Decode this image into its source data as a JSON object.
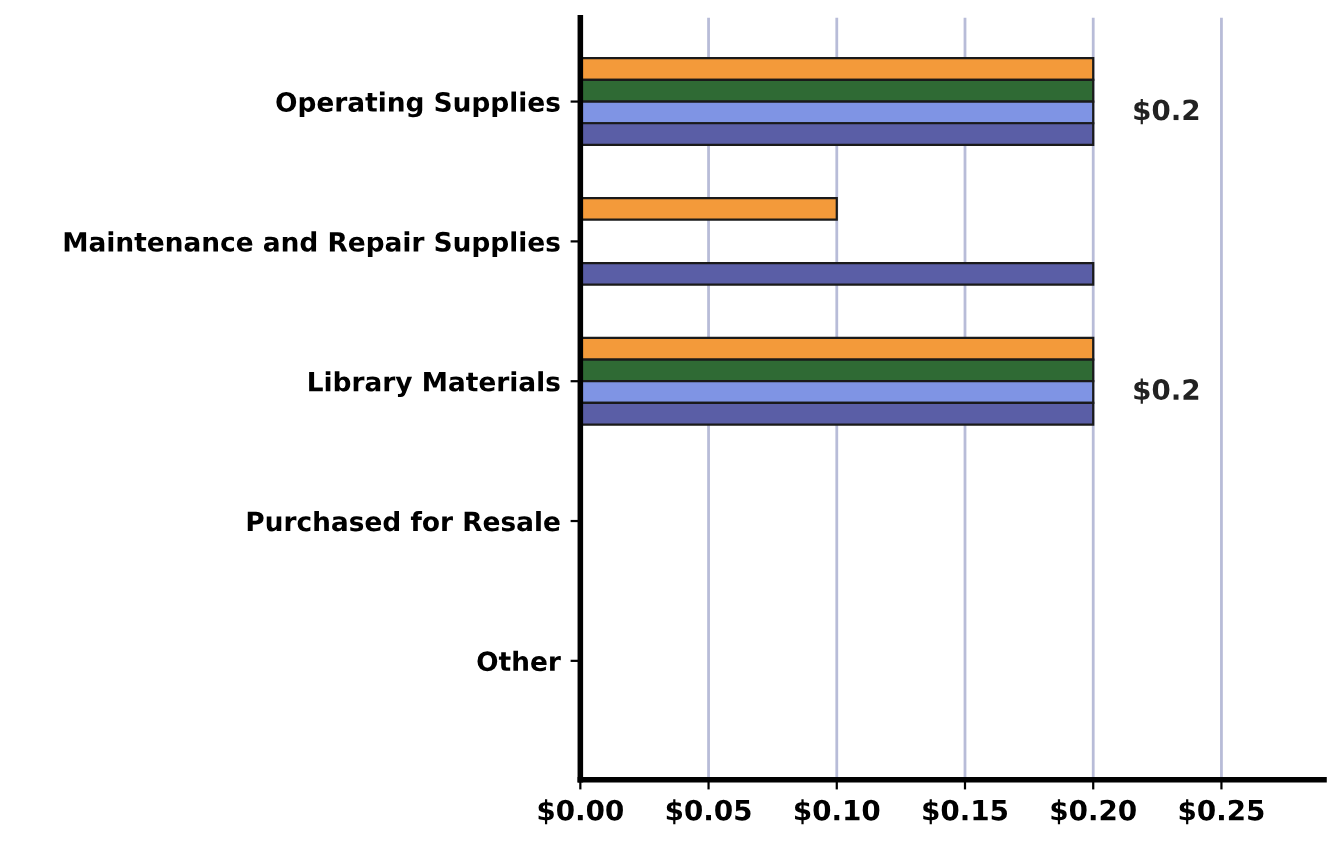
{
  "chart_data": {
    "type": "bar",
    "orientation": "horizontal",
    "categories": [
      "Operating Supplies",
      "Maintenance and Repair Supplies",
      "Library Materials",
      "Purchased for Resale",
      "Other"
    ],
    "series": [
      {
        "color": "#f39a3a",
        "values": [
          0.2,
          0.1,
          0.2,
          null,
          null
        ]
      },
      {
        "color": "#2f6a34",
        "values": [
          0.2,
          null,
          0.2,
          null,
          null
        ]
      },
      {
        "color": "#7f94e4",
        "values": [
          0.2,
          null,
          0.2,
          null,
          null
        ],
        "value_labels": [
          "$0.2",
          null,
          "$0.2",
          null,
          null
        ]
      },
      {
        "color": "#5a5ea6",
        "values": [
          0.2,
          0.2,
          0.2,
          null,
          null
        ]
      }
    ],
    "xlim": [
      0,
      0.29
    ],
    "xticks": [
      {
        "value": 0,
        "label": "$0.00"
      },
      {
        "value": 0.05,
        "label": "$0.05"
      },
      {
        "value": 0.1,
        "label": "$0.10"
      },
      {
        "value": 0.15,
        "label": "$0.15"
      },
      {
        "value": 0.2,
        "label": "$0.20"
      },
      {
        "value": 0.25,
        "label": "$0.25"
      }
    ],
    "grid": "x",
    "legend": false
  }
}
